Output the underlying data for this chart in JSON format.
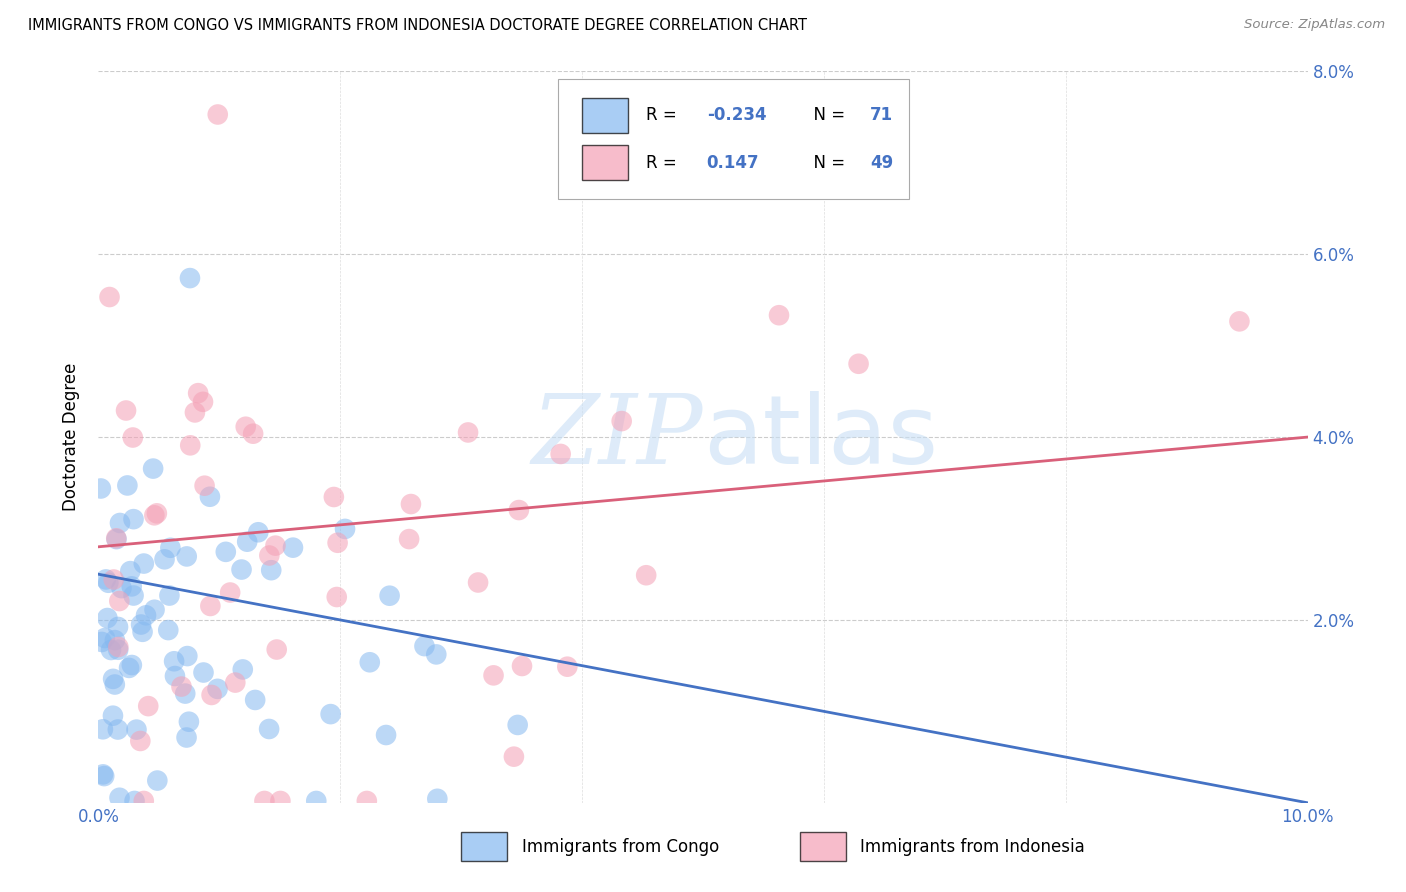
{
  "title": "IMMIGRANTS FROM CONGO VS IMMIGRANTS FROM INDONESIA DOCTORATE DEGREE CORRELATION CHART",
  "source": "Source: ZipAtlas.com",
  "ylabel": "Doctorate Degree",
  "xlim": [
    0.0,
    0.1
  ],
  "ylim": [
    0.0,
    0.08
  ],
  "xticks": [
    0.0,
    0.02,
    0.04,
    0.06,
    0.08,
    0.1
  ],
  "yticks": [
    0.0,
    0.02,
    0.04,
    0.06,
    0.08
  ],
  "xtick_labels": [
    "0.0%",
    "",
    "",
    "",
    "",
    "10.0%"
  ],
  "ytick_labels_right": [
    "",
    "2.0%",
    "4.0%",
    "6.0%",
    "8.0%"
  ],
  "congo_color": "#85B8F0",
  "indonesia_color": "#F4A0B5",
  "congo_R": -0.234,
  "congo_N": 71,
  "indonesia_R": 0.147,
  "indonesia_N": 49,
  "legend_label_congo": "Immigrants from Congo",
  "legend_label_indonesia": "Immigrants from Indonesia",
  "watermark": "ZIPatlas",
  "background_color": "#ffffff",
  "title_fontsize": 10.5,
  "axis_color": "#4472c4",
  "congo_line_color": "#4472c4",
  "indonesia_line_color": "#D9607A",
  "congo_line_start_y": 0.025,
  "congo_line_end_y": 0.0,
  "indonesia_line_start_y": 0.028,
  "indonesia_line_end_y": 0.04
}
